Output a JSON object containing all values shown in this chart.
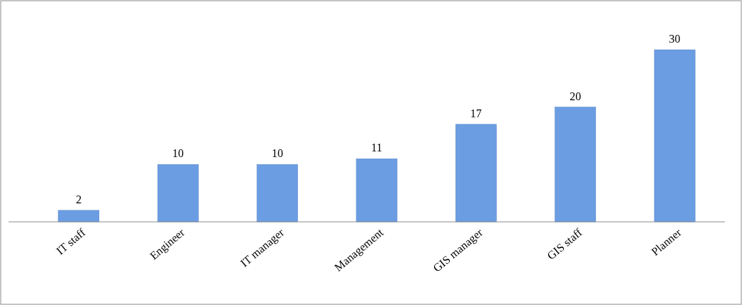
{
  "chart_data": {
    "type": "bar",
    "categories": [
      "IT staff",
      "Engineer",
      "IT manager",
      "Management",
      "GIS manager",
      "GIS staff",
      "Planner"
    ],
    "values": [
      2,
      10,
      10,
      11,
      17,
      20,
      30
    ],
    "color": "#6b9de3",
    "data_labels": true
  }
}
